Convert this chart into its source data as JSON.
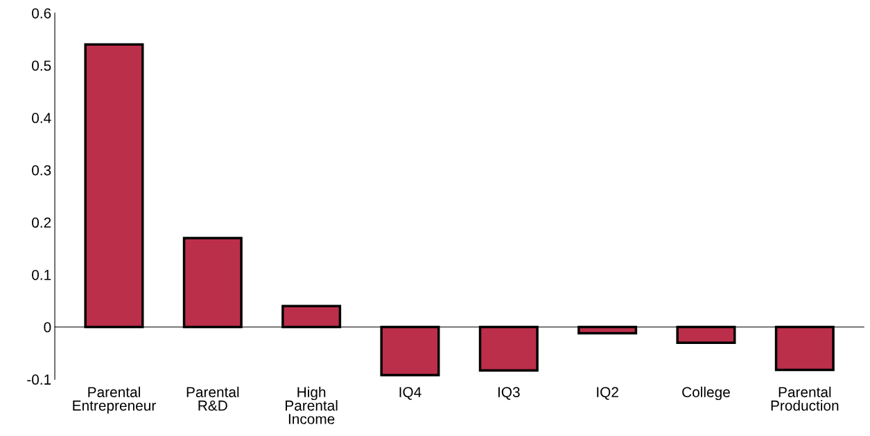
{
  "chart_data": {
    "type": "bar",
    "categories": [
      "Parental\nEntrepreneur",
      "Parental\nR&D",
      "High\nParental\nIncome",
      "IQ4",
      "IQ3",
      "IQ2",
      "College",
      "Parental\nProduction"
    ],
    "values": [
      0.54,
      0.17,
      0.04,
      -0.092,
      -0.083,
      -0.012,
      -0.03,
      -0.082
    ],
    "color": "#bc2f4b",
    "ylim": [
      -0.1,
      0.6
    ],
    "yticks": [
      {
        "value": -0.1,
        "label": "-0.1"
      },
      0,
      0.1,
      0.2,
      0.3,
      0.4,
      0.5,
      0.6
    ],
    "legend": false
  }
}
